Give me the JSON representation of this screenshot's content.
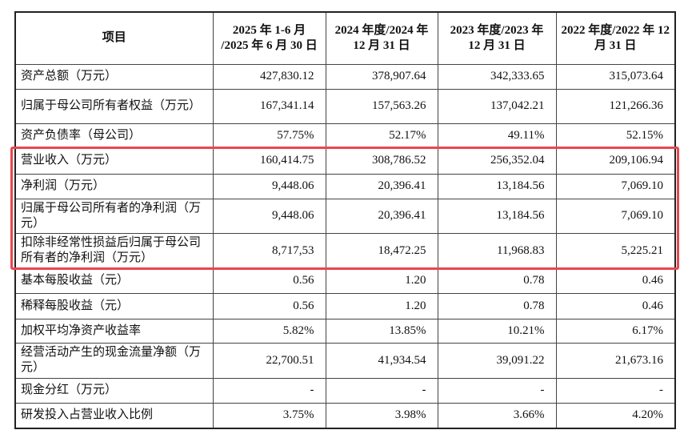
{
  "table": {
    "headers": [
      "项目",
      "2025 年 1-6 月 /2025 年 6 月 30 日",
      "2024 年度/2024 年 12 月 31 日",
      "2023 年度/2023 年 12 月 31 日",
      "2022 年度/2022 年 12 月 31 日"
    ],
    "rows": [
      {
        "label": "资产总额（万元）",
        "values": [
          "427,830.12",
          "378,907.64",
          "342,333.65",
          "315,073.64"
        ]
      },
      {
        "label": "归属于母公司所有者权益（万元）",
        "values": [
          "167,341.14",
          "157,563.26",
          "137,042.21",
          "121,266.36"
        ]
      },
      {
        "label": "资产负债率（母公司）",
        "values": [
          "57.75%",
          "52.17%",
          "49.11%",
          "52.15%"
        ]
      },
      {
        "label": "营业收入（万元）",
        "values": [
          "160,414.75",
          "308,786.52",
          "256,352.04",
          "209,106.94"
        ]
      },
      {
        "label": "净利润（万元）",
        "values": [
          "9,448.06",
          "20,396.41",
          "13,184.56",
          "7,069.10"
        ]
      },
      {
        "label": "归属于母公司所有者的净利润（万元）",
        "values": [
          "9,448.06",
          "20,396.41",
          "13,184.56",
          "7,069.10"
        ]
      },
      {
        "label": "扣除非经常性损益后归属于母公司所有者的净利润（万元）",
        "values": [
          "8,717,53",
          "18,472.25",
          "11,968.83",
          "5,225.21"
        ]
      },
      {
        "label": "基本每股收益（元）",
        "values": [
          "0.56",
          "1.20",
          "0.78",
          "0.46"
        ]
      },
      {
        "label": "稀释每股收益（元）",
        "values": [
          "0.56",
          "1.20",
          "0.78",
          "0.46"
        ]
      },
      {
        "label": "加权平均净资产收益率",
        "values": [
          "5.82%",
          "13.85%",
          "10.21%",
          "6.17%"
        ]
      },
      {
        "label": "经营活动产生的现金流量净额（万元）",
        "values": [
          "22,700.51",
          "41,934.54",
          "39,091.22",
          "21,673.16"
        ]
      },
      {
        "label": "现金分红（万元）",
        "values": [
          "-",
          "-",
          "-",
          "-"
        ]
      },
      {
        "label": "研发投入占营业收入比例",
        "values": [
          "3.75%",
          "3.98%",
          "3.66%",
          "4.20%"
        ]
      }
    ]
  },
  "highlight_color": "#e8474e"
}
